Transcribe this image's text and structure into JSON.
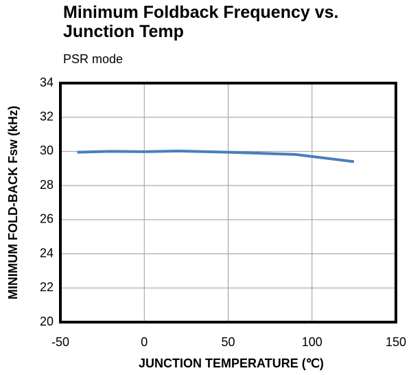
{
  "chart_data": {
    "type": "line",
    "title": "Minimum Foldback Frequency vs. Junction Temp",
    "subtitle": "PSR mode",
    "x_label": "JUNCTION  TEMPERATURE  (℃)",
    "y_label": "MINIMUM FOLD-BACK  Fsw (kHz)",
    "x": [
      -40,
      -20,
      0,
      20,
      50,
      90,
      125
    ],
    "series": [
      {
        "name": "Fsw",
        "color": "#4a7ebb",
        "values": [
          29.95,
          30.0,
          29.98,
          30.02,
          29.95,
          29.82,
          29.4
        ]
      }
    ],
    "xlim": [
      -50,
      150
    ],
    "xticks": [
      -50,
      0,
      50,
      100,
      150
    ],
    "ylim": [
      20,
      34
    ],
    "yticks": [
      20,
      22,
      24,
      26,
      28,
      30,
      32,
      34
    ],
    "grid": true
  }
}
